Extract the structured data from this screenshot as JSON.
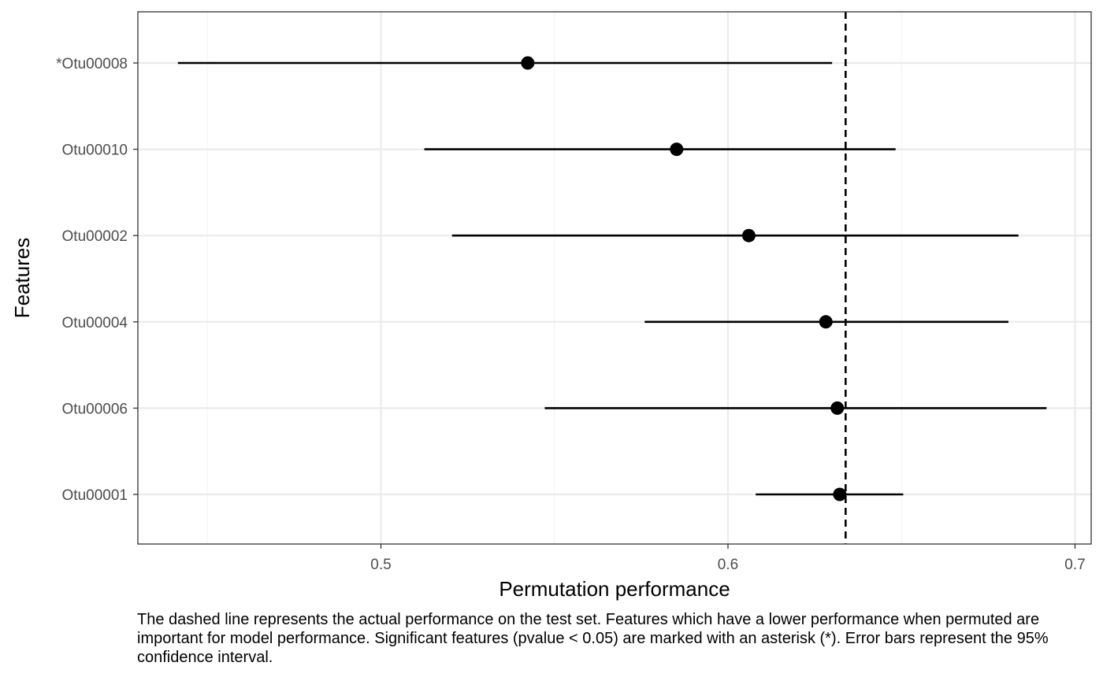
{
  "chart_data": {
    "type": "scatter",
    "title": "",
    "xlabel": "Permutation performance",
    "ylabel": "Features",
    "xlim": [
      0.43,
      0.704
    ],
    "x_ticks": [
      0.5,
      0.6,
      0.7
    ],
    "x_tick_labels": [
      "0.5",
      "0.6",
      "0.7"
    ],
    "grid": true,
    "legend": "none",
    "reference_line": {
      "value": 0.6339,
      "style": "dashed"
    },
    "features": [
      {
        "label": "*Otu00008",
        "value": 0.5423,
        "lower": 0.4415,
        "upper": 0.63
      },
      {
        "label": "Otu00010",
        "value": 0.5852,
        "lower": 0.5125,
        "upper": 0.6483
      },
      {
        "label": "Otu00002",
        "value": 0.606,
        "lower": 0.5205,
        "upper": 0.6837
      },
      {
        "label": "Otu00004",
        "value": 0.6282,
        "lower": 0.576,
        "upper": 0.6808
      },
      {
        "label": "Otu00006",
        "value": 0.6315,
        "lower": 0.5472,
        "upper": 0.6918
      },
      {
        "label": "Otu00001",
        "value": 0.6322,
        "lower": 0.608,
        "upper": 0.6505
      }
    ],
    "colors": {
      "points": "#000000",
      "grid_major": "#ebebeb",
      "grid_minor": "#f4f4f4",
      "axis_text": "#4d4d4d",
      "panel_border": "#333333"
    }
  },
  "caption": "The dashed line represents the actual performance on the test set. Features which have a lower performance when permuted are important for model performance. Significant features (pvalue < 0.05) are marked with an asterisk (*). Error bars represent the 95% confidence interval."
}
